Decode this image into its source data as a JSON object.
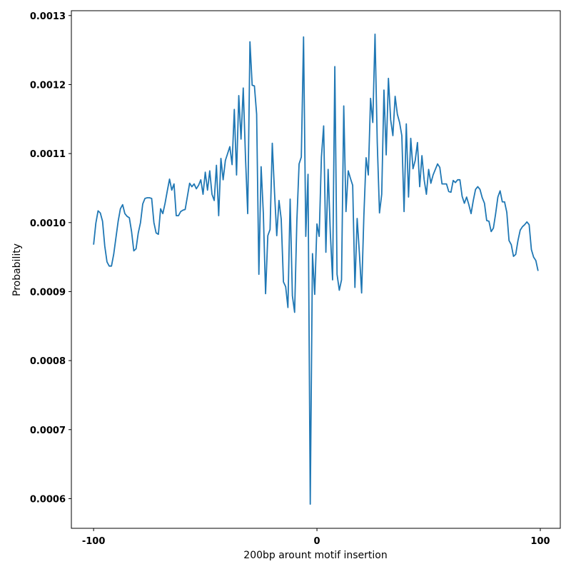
{
  "chart_data": {
    "type": "line",
    "xlabel": "200bp arount motif insertion",
    "ylabel": "Probability",
    "color": "#1f77b4",
    "xlim": [
      -109.95,
      108.95
    ],
    "ylim": [
      0.000557,
      0.001307
    ],
    "xticks": [
      -100,
      0,
      100
    ],
    "yticks": [
      {
        "value": 0.0006,
        "label": "0.0006"
      },
      {
        "value": 0.0007,
        "label": "0.0007"
      },
      {
        "value": 0.0008,
        "label": "0.0008"
      },
      {
        "value": 0.0009,
        "label": "0.0009"
      },
      {
        "value": 0.001,
        "label": "0.0010"
      },
      {
        "value": 0.0011,
        "label": "0.0011"
      },
      {
        "value": 0.0012,
        "label": "0.0012"
      },
      {
        "value": 0.0013,
        "label": "0.0013"
      }
    ],
    "x": [
      -100,
      -99,
      -98,
      -97,
      -96,
      -95,
      -94,
      -93,
      -92,
      -91,
      -90,
      -89,
      -88,
      -87,
      -86,
      -85,
      -84,
      -83,
      -82,
      -81,
      -80,
      -79,
      -78,
      -77,
      -76,
      -75,
      -74,
      -73,
      -72,
      -71,
      -70,
      -69,
      -68,
      -67,
      -66,
      -65,
      -64,
      -63,
      -62,
      -61,
      -60,
      -59,
      -58,
      -57,
      -56,
      -55,
      -54,
      -53,
      -52,
      -51,
      -50,
      -49,
      -48,
      -47,
      -46,
      -45,
      -44,
      -43,
      -42,
      -41,
      -40,
      -39,
      -38,
      -37,
      -36,
      -35,
      -34,
      -33,
      -32,
      -31,
      -30,
      -29,
      -28,
      -27,
      -26,
      -25,
      -24,
      -23,
      -22,
      -21,
      -20,
      -19,
      -18,
      -17,
      -16,
      -15,
      -14,
      -13,
      -12,
      -11,
      -10,
      -9,
      -8,
      -7,
      -6,
      -5,
      -4,
      -3,
      -2,
      -1,
      0,
      1,
      2,
      3,
      4,
      5,
      6,
      7,
      8,
      9,
      10,
      11,
      12,
      13,
      14,
      15,
      16,
      17,
      18,
      19,
      20,
      21,
      22,
      23,
      24,
      25,
      26,
      27,
      28,
      29,
      30,
      31,
      32,
      33,
      34,
      35,
      36,
      37,
      38,
      39,
      40,
      41,
      42,
      43,
      44,
      45,
      46,
      47,
      48,
      49,
      50,
      51,
      52,
      53,
      54,
      55,
      56,
      57,
      58,
      59,
      60,
      61,
      62,
      63,
      64,
      65,
      66,
      67,
      68,
      69,
      70,
      71,
      72,
      73,
      74,
      75,
      76,
      77,
      78,
      79,
      80,
      81,
      82,
      83,
      84,
      85,
      86,
      87,
      88,
      89,
      90,
      91,
      92,
      93,
      94,
      95,
      96,
      97,
      98,
      99
    ],
    "values": [
      0.000968,
      0.000999,
      0.001017,
      0.001014,
      0.001002,
      0.000966,
      0.000943,
      0.000937,
      0.000937,
      0.000954,
      0.000978,
      0.001002,
      0.00102,
      0.001026,
      0.001013,
      0.001009,
      0.001007,
      0.000987,
      0.000959,
      0.000962,
      0.000985,
      0.001,
      0.001027,
      0.001035,
      0.001036,
      0.001036,
      0.001035,
      0.001,
      0.000985,
      0.000983,
      0.00102,
      0.001013,
      0.001028,
      0.001046,
      0.001063,
      0.001047,
      0.001056,
      0.00101,
      0.00101,
      0.001016,
      0.001018,
      0.001019,
      0.001038,
      0.001057,
      0.001052,
      0.001056,
      0.001049,
      0.001054,
      0.001062,
      0.001041,
      0.001073,
      0.001047,
      0.001075,
      0.001041,
      0.001032,
      0.001083,
      0.00101,
      0.001093,
      0.001062,
      0.00109,
      0.0011,
      0.00111,
      0.001084,
      0.001164,
      0.001069,
      0.001184,
      0.001121,
      0.001195,
      0.001095,
      0.001013,
      0.001262,
      0.001199,
      0.001198,
      0.001157,
      0.000925,
      0.001081,
      0.001013,
      0.000897,
      0.000981,
      0.00099,
      0.001115,
      0.001044,
      0.000981,
      0.001032,
      0.001005,
      0.000914,
      0.000907,
      0.000877,
      0.001034,
      0.000894,
      0.00087,
      0.001002,
      0.001085,
      0.001095,
      0.001269,
      0.00098,
      0.00107,
      0.000592,
      0.000955,
      0.000896,
      0.000998,
      0.00098,
      0.001095,
      0.00114,
      0.000957,
      0.001077,
      0.000984,
      0.000917,
      0.001226,
      0.000925,
      0.000902,
      0.000917,
      0.001169,
      0.001016,
      0.001075,
      0.001064,
      0.001054,
      0.000906,
      0.001006,
      0.000956,
      0.000898,
      0.001009,
      0.001094,
      0.001069,
      0.00118,
      0.001145,
      0.001273,
      0.001116,
      0.001014,
      0.001041,
      0.001192,
      0.001098,
      0.001209,
      0.001149,
      0.001126,
      0.001183,
      0.001157,
      0.001145,
      0.001126,
      0.001016,
      0.001143,
      0.001037,
      0.001122,
      0.001078,
      0.00109,
      0.001116,
      0.001052,
      0.001097,
      0.001062,
      0.001041,
      0.001077,
      0.001057,
      0.001069,
      0.001077,
      0.001085,
      0.00108,
      0.001056,
      0.001056,
      0.001056,
      0.001045,
      0.001044,
      0.001061,
      0.001058,
      0.001062,
      0.001062,
      0.001038,
      0.001028,
      0.001037,
      0.001026,
      0.001013,
      0.001032,
      0.001048,
      0.001052,
      0.001048,
      0.001036,
      0.001028,
      0.001003,
      0.001002,
      0.000987,
      0.000992,
      0.001013,
      0.001037,
      0.001046,
      0.00103,
      0.00103,
      0.001015,
      0.000974,
      0.000968,
      0.000951,
      0.000954,
      0.000974,
      0.000989,
      0.000994,
      0.000997,
      0.001001,
      0.000997,
      0.000961,
      0.00095,
      0.000945,
      0.00093
    ]
  }
}
